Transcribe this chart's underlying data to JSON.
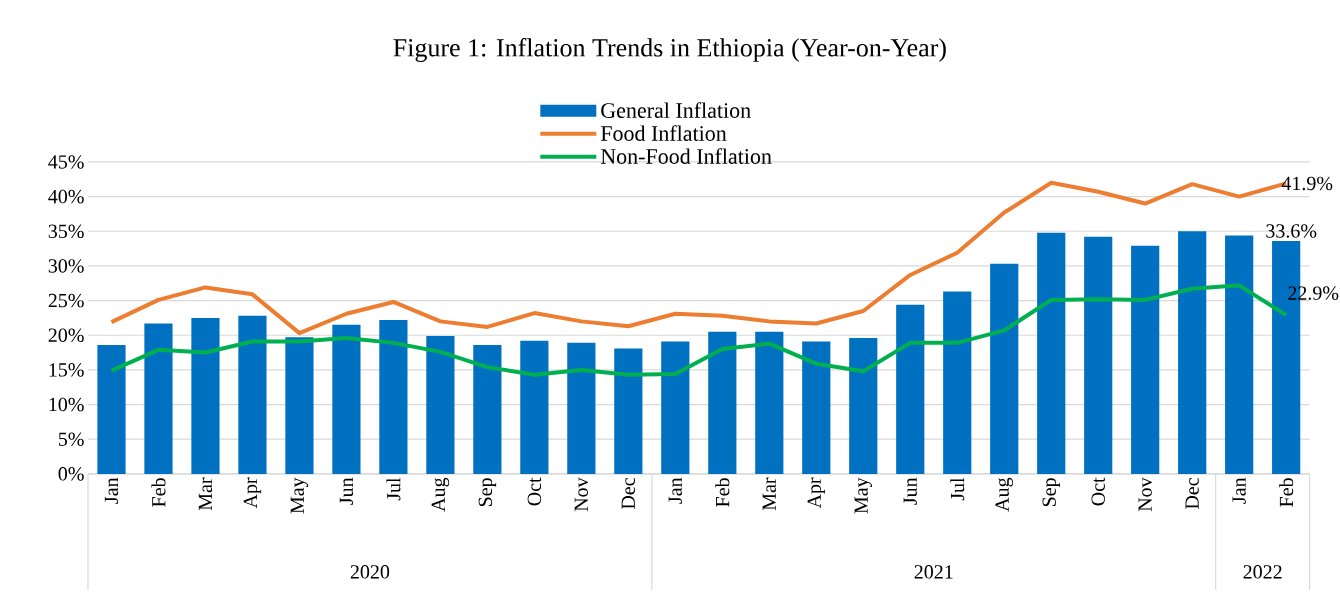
{
  "chart_data": {
    "type": "bar",
    "title": "Figure 1: Inflation Trends in Ethiopia (Year-on-Year)",
    "categories": [
      "Jan",
      "Feb",
      "Mar",
      "Apr",
      "May",
      "Jun",
      "Jul",
      "Aug",
      "Sep",
      "Oct",
      "Nov",
      "Dec",
      "Jan",
      "Feb",
      "Mar",
      "Apr",
      "May",
      "Jun",
      "Jul",
      "Aug",
      "Sep",
      "Oct",
      "Nov",
      "Dec",
      "Jan",
      "Feb"
    ],
    "annotations": [
      "2020",
      "2021",
      "2022"
    ],
    "series": [
      {
        "name": "General Inflation",
        "color": "#0070c0",
        "values": [
          18.6,
          21.7,
          22.5,
          22.8,
          19.7,
          21.5,
          22.2,
          19.9,
          18.6,
          19.2,
          18.9,
          18.1,
          19.1,
          20.5,
          20.5,
          19.1,
          19.6,
          24.4,
          26.3,
          30.3,
          34.8,
          34.2,
          32.9,
          35.0,
          34.4,
          33.6
        ],
        "value_labels": [
          null,
          null,
          null,
          null,
          null,
          null,
          null,
          null,
          null,
          null,
          null,
          null,
          null,
          null,
          null,
          null,
          null,
          null,
          null,
          null,
          null,
          null,
          null,
          null,
          null,
          "33.6%"
        ]
      },
      {
        "name": "Food Inflation",
        "type": "line",
        "color": "#ed7d31",
        "values": [
          21.9,
          25.1,
          26.9,
          25.9,
          20.3,
          23.1,
          24.8,
          22.0,
          21.2,
          23.2,
          22.0,
          21.3,
          23.1,
          22.8,
          22.0,
          21.7,
          23.5,
          28.7,
          31.9,
          37.7,
          42.0,
          40.7,
          39.0,
          41.8,
          40.0,
          41.9
        ],
        "value_labels": [
          null,
          null,
          null,
          null,
          null,
          null,
          null,
          null,
          null,
          null,
          null,
          null,
          null,
          null,
          null,
          null,
          null,
          null,
          null,
          null,
          null,
          null,
          null,
          null,
          null,
          "41.9%"
        ]
      },
      {
        "name": "Non-Food Inflation",
        "type": "line",
        "color": "#00b050",
        "values": [
          14.9,
          17.9,
          17.5,
          19.1,
          19.1,
          19.6,
          18.9,
          17.6,
          15.4,
          14.3,
          15.0,
          14.3,
          14.4,
          18.0,
          18.8,
          15.9,
          14.8,
          18.9,
          18.9,
          20.7,
          25.1,
          25.2,
          25.1,
          26.7,
          27.2,
          22.9
        ],
        "value_labels": [
          null,
          null,
          null,
          null,
          null,
          null,
          null,
          null,
          null,
          null,
          null,
          null,
          null,
          null,
          null,
          null,
          null,
          null,
          null,
          null,
          null,
          null,
          null,
          null,
          null,
          "22.9%"
        ]
      }
    ],
    "ylim": [
      0,
      45
    ],
    "yticks": [
      {
        "value": 0,
        "label": "0%"
      },
      {
        "value": 5,
        "label": "5%"
      },
      {
        "value": 10,
        "label": "10%"
      },
      {
        "value": 15,
        "label": "15%"
      },
      {
        "value": 20,
        "label": "20%"
      },
      {
        "value": 25,
        "label": "25%"
      },
      {
        "value": 30,
        "label": "30%"
      },
      {
        "value": 35,
        "label": "35%"
      },
      {
        "value": 40,
        "label": "40%"
      },
      {
        "value": 45,
        "label": "45%"
      }
    ],
    "grid": "y",
    "legend": "top"
  }
}
